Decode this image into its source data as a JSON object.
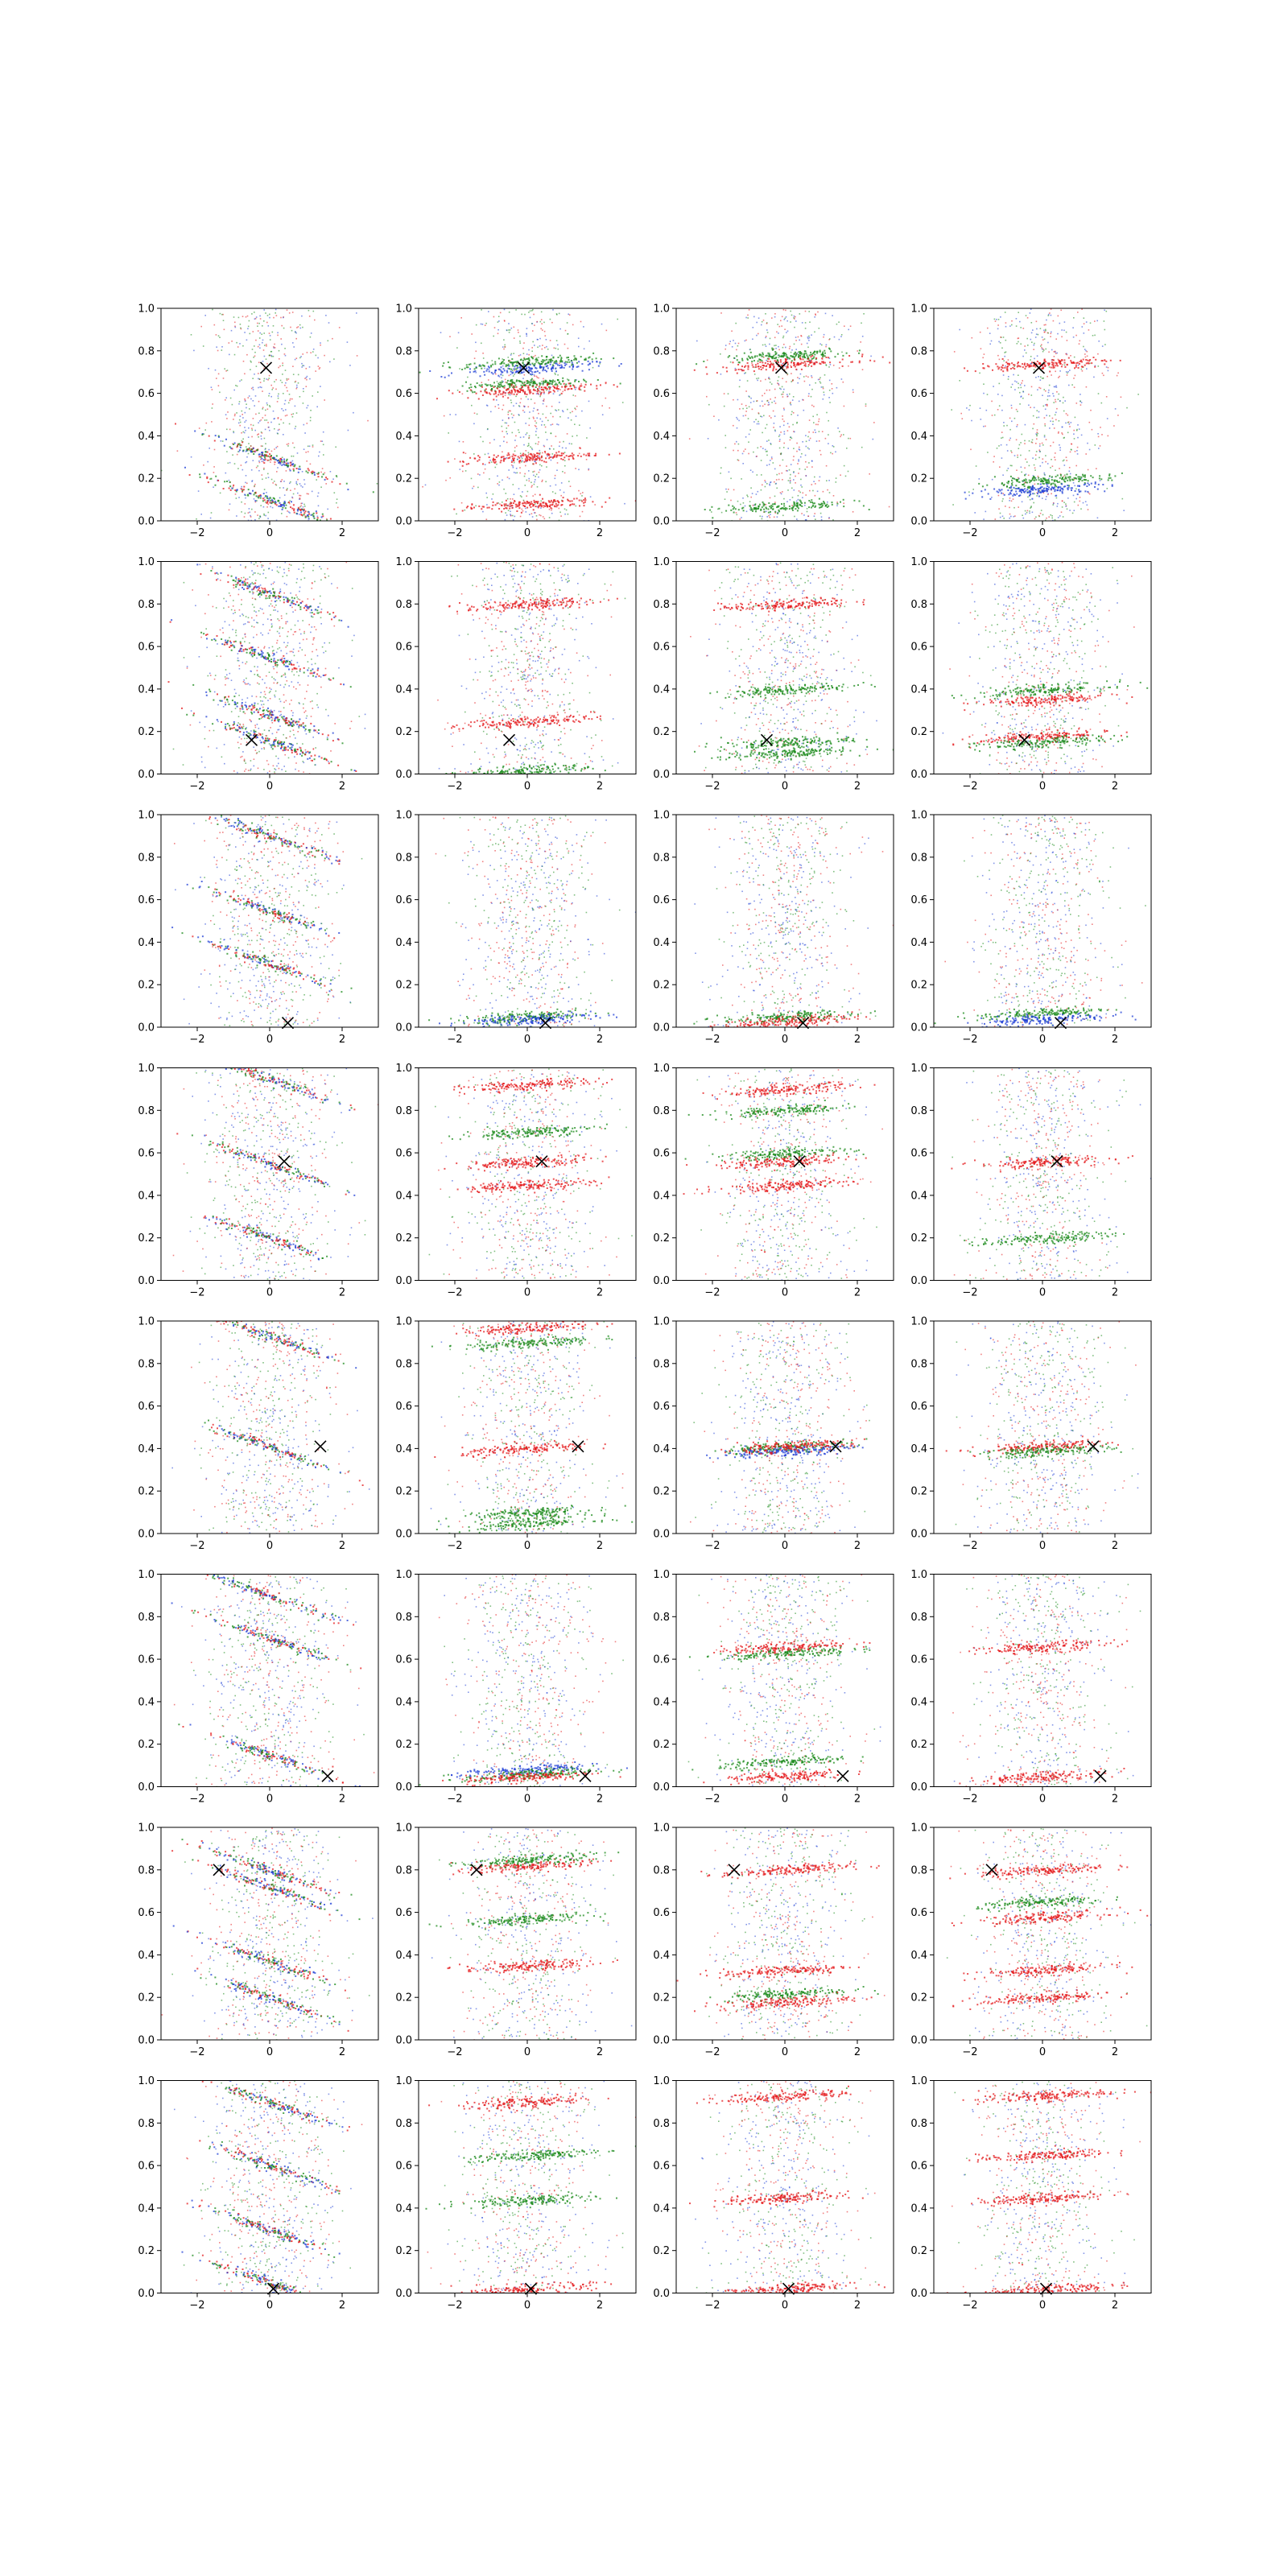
{
  "figure": {
    "rows": 8,
    "cols": 4,
    "marker_color": "#000000",
    "series_colors": {
      "red": "#e41a1c",
      "green": "#1a8a1a",
      "blue": "#1f3fd6"
    }
  },
  "chart_data": {
    "type": "scatter",
    "panel_count": 32,
    "xlim": [
      -3,
      3
    ],
    "ylim": [
      0,
      1
    ],
    "x_ticks": [
      -2,
      0,
      2
    ],
    "x_tick_labels": [
      "−2",
      "0",
      "2"
    ],
    "y_ticks": [
      0.0,
      0.2,
      0.4,
      0.6,
      0.8,
      1.0
    ],
    "y_tick_labels": [
      "0.0",
      "0.2",
      "0.4",
      "0.6",
      "0.8",
      "1.0"
    ],
    "grid": false,
    "legend": "none",
    "marker": {
      "symbol": "x",
      "description": "reference point per row"
    },
    "rows": [
      {
        "x_marker": {
          "x": -0.1,
          "y": 0.72
        },
        "panels": [
          {
            "bands": [
              {
                "y": 0.3,
                "color": "mixed"
              },
              {
                "y": 0.1,
                "color": "mixed"
              }
            ]
          },
          {
            "bands": [
              {
                "y": 0.72,
                "color": "blue"
              },
              {
                "y": 0.75,
                "color": "green"
              },
              {
                "y": 0.65,
                "color": "green"
              },
              {
                "y": 0.62,
                "color": "red"
              },
              {
                "y": 0.3,
                "color": "red"
              },
              {
                "y": 0.08,
                "color": "red"
              }
            ]
          },
          {
            "bands": [
              {
                "y": 0.78,
                "color": "green"
              },
              {
                "y": 0.74,
                "color": "red"
              },
              {
                "y": 0.07,
                "color": "green"
              }
            ]
          },
          {
            "bands": [
              {
                "y": 0.74,
                "color": "red"
              },
              {
                "y": 0.19,
                "color": "green"
              },
              {
                "y": 0.15,
                "color": "blue"
              }
            ]
          }
        ]
      },
      {
        "x_marker": {
          "x": -0.5,
          "y": 0.16
        },
        "panels": [
          {
            "bands": [
              {
                "y": 0.85,
                "color": "mixed"
              },
              {
                "y": 0.55,
                "color": "mixed"
              },
              {
                "y": 0.28,
                "color": "mixed"
              },
              {
                "y": 0.16,
                "color": "mixed"
              }
            ]
          },
          {
            "bands": [
              {
                "y": 0.8,
                "color": "red"
              },
              {
                "y": 0.25,
                "color": "red"
              },
              {
                "y": 0.02,
                "color": "green"
              }
            ]
          },
          {
            "bands": [
              {
                "y": 0.4,
                "color": "green"
              },
              {
                "y": 0.15,
                "color": "green"
              },
              {
                "y": 0.1,
                "color": "green"
              },
              {
                "y": 0.8,
                "color": "red"
              }
            ]
          },
          {
            "bands": [
              {
                "y": 0.4,
                "color": "green"
              },
              {
                "y": 0.35,
                "color": "red"
              },
              {
                "y": 0.18,
                "color": "red"
              },
              {
                "y": 0.15,
                "color": "green"
              }
            ]
          }
        ]
      },
      {
        "x_marker": {
          "x": 0.5,
          "y": 0.02
        },
        "panels": [
          {
            "bands": [
              {
                "y": 0.9,
                "color": "mixed"
              },
              {
                "y": 0.55,
                "color": "mixed"
              },
              {
                "y": 0.3,
                "color": "mixed"
              }
            ]
          },
          {
            "bands": [
              {
                "y": 0.05,
                "color": "green"
              },
              {
                "y": 0.04,
                "color": "blue"
              }
            ]
          },
          {
            "bands": [
              {
                "y": 0.05,
                "color": "green"
              },
              {
                "y": 0.03,
                "color": "red"
              }
            ]
          },
          {
            "bands": [
              {
                "y": 0.07,
                "color": "green"
              },
              {
                "y": 0.04,
                "color": "blue"
              }
            ]
          }
        ]
      },
      {
        "x_marker": {
          "x": 0.4,
          "y": 0.56
        },
        "panels": [
          {
            "bands": [
              {
                "y": 0.95,
                "color": "mixed"
              },
              {
                "y": 0.55,
                "color": "mixed"
              },
              {
                "y": 0.2,
                "color": "mixed"
              }
            ]
          },
          {
            "bands": [
              {
                "y": 0.92,
                "color": "red"
              },
              {
                "y": 0.56,
                "color": "red"
              },
              {
                "y": 0.45,
                "color": "red"
              },
              {
                "y": 0.7,
                "color": "green"
              }
            ]
          },
          {
            "bands": [
              {
                "y": 0.9,
                "color": "red"
              },
              {
                "y": 0.8,
                "color": "green"
              },
              {
                "y": 0.6,
                "color": "green"
              },
              {
                "y": 0.56,
                "color": "red"
              },
              {
                "y": 0.45,
                "color": "red"
              }
            ]
          },
          {
            "bands": [
              {
                "y": 0.56,
                "color": "red"
              },
              {
                "y": 0.2,
                "color": "green"
              }
            ]
          }
        ]
      },
      {
        "x_marker": {
          "x": 1.4,
          "y": 0.41
        },
        "panels": [
          {
            "bands": [
              {
                "y": 0.93,
                "color": "mixed"
              },
              {
                "y": 0.41,
                "color": "mixed"
              }
            ]
          },
          {
            "bands": [
              {
                "y": 0.97,
                "color": "red"
              },
              {
                "y": 0.9,
                "color": "green"
              },
              {
                "y": 0.4,
                "color": "red"
              },
              {
                "y": 0.1,
                "color": "green"
              },
              {
                "y": 0.05,
                "color": "green"
              }
            ]
          },
          {
            "bands": [
              {
                "y": 0.41,
                "color": "green"
              },
              {
                "y": 0.39,
                "color": "blue"
              },
              {
                "y": 0.41,
                "color": "red"
              }
            ]
          },
          {
            "bands": [
              {
                "y": 0.41,
                "color": "red"
              },
              {
                "y": 0.39,
                "color": "green"
              }
            ]
          }
        ]
      },
      {
        "x_marker": {
          "x": 1.6,
          "y": 0.05
        },
        "panels": [
          {
            "bands": [
              {
                "y": 0.9,
                "color": "mixed"
              },
              {
                "y": 0.7,
                "color": "mixed"
              },
              {
                "y": 0.15,
                "color": "mixed"
              }
            ]
          },
          {
            "bands": [
              {
                "y": 0.08,
                "color": "blue"
              },
              {
                "y": 0.06,
                "color": "green"
              },
              {
                "y": 0.05,
                "color": "red"
              }
            ]
          },
          {
            "bands": [
              {
                "y": 0.66,
                "color": "red"
              },
              {
                "y": 0.63,
                "color": "green"
              },
              {
                "y": 0.12,
                "color": "green"
              },
              {
                "y": 0.05,
                "color": "red"
              }
            ]
          },
          {
            "bands": [
              {
                "y": 0.66,
                "color": "red"
              },
              {
                "y": 0.05,
                "color": "red"
              }
            ]
          }
        ]
      },
      {
        "x_marker": {
          "x": -1.4,
          "y": 0.8
        },
        "panels": [
          {
            "bands": [
              {
                "y": 0.8,
                "color": "mixed"
              },
              {
                "y": 0.72,
                "color": "mixed"
              },
              {
                "y": 0.37,
                "color": "mixed"
              },
              {
                "y": 0.2,
                "color": "mixed"
              }
            ]
          },
          {
            "bands": [
              {
                "y": 0.82,
                "color": "red"
              },
              {
                "y": 0.85,
                "color": "green"
              },
              {
                "y": 0.57,
                "color": "green"
              },
              {
                "y": 0.35,
                "color": "red"
              }
            ]
          },
          {
            "bands": [
              {
                "y": 0.8,
                "color": "red"
              },
              {
                "y": 0.33,
                "color": "red"
              },
              {
                "y": 0.22,
                "color": "green"
              },
              {
                "y": 0.18,
                "color": "red"
              }
            ]
          },
          {
            "bands": [
              {
                "y": 0.8,
                "color": "red"
              },
              {
                "y": 0.65,
                "color": "green"
              },
              {
                "y": 0.58,
                "color": "red"
              },
              {
                "y": 0.33,
                "color": "red"
              },
              {
                "y": 0.2,
                "color": "red"
              }
            ]
          }
        ]
      },
      {
        "x_marker": {
          "x": 0.1,
          "y": 0.02
        },
        "panels": [
          {
            "bands": [
              {
                "y": 0.9,
                "color": "mixed"
              },
              {
                "y": 0.6,
                "color": "mixed"
              },
              {
                "y": 0.3,
                "color": "mixed"
              },
              {
                "y": 0.05,
                "color": "mixed"
              }
            ]
          },
          {
            "bands": [
              {
                "y": 0.9,
                "color": "red"
              },
              {
                "y": 0.44,
                "color": "green"
              },
              {
                "y": 0.65,
                "color": "green"
              },
              {
                "y": 0.02,
                "color": "red"
              }
            ]
          },
          {
            "bands": [
              {
                "y": 0.93,
                "color": "red"
              },
              {
                "y": 0.45,
                "color": "red"
              },
              {
                "y": 0.02,
                "color": "red"
              }
            ]
          },
          {
            "bands": [
              {
                "y": 0.93,
                "color": "red"
              },
              {
                "y": 0.65,
                "color": "red"
              },
              {
                "y": 0.45,
                "color": "red"
              },
              {
                "y": 0.02,
                "color": "red"
              }
            ]
          }
        ]
      }
    ]
  }
}
